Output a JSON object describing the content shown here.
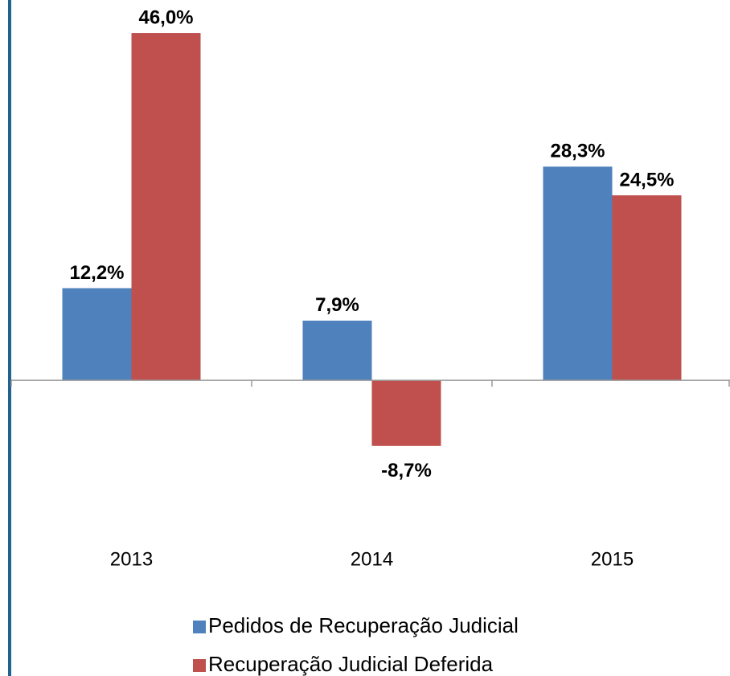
{
  "chart_data": {
    "type": "bar",
    "categories": [
      "2013",
      "2014",
      "2015"
    ],
    "series": [
      {
        "name": "Pedidos de Recuperação Judicial",
        "color": "#4f81bd",
        "values": [
          12.2,
          7.9,
          28.3
        ],
        "value_labels": [
          "12,2%",
          "7,9%",
          "28,3%"
        ]
      },
      {
        "name": "Recuperação Judicial Deferida",
        "color": "#c0504d",
        "values": [
          46.0,
          -8.7,
          24.5
        ],
        "value_labels": [
          "46,0%",
          "-8,7%",
          "24,5%"
        ]
      }
    ],
    "ylim": [
      -10,
      50
    ]
  }
}
